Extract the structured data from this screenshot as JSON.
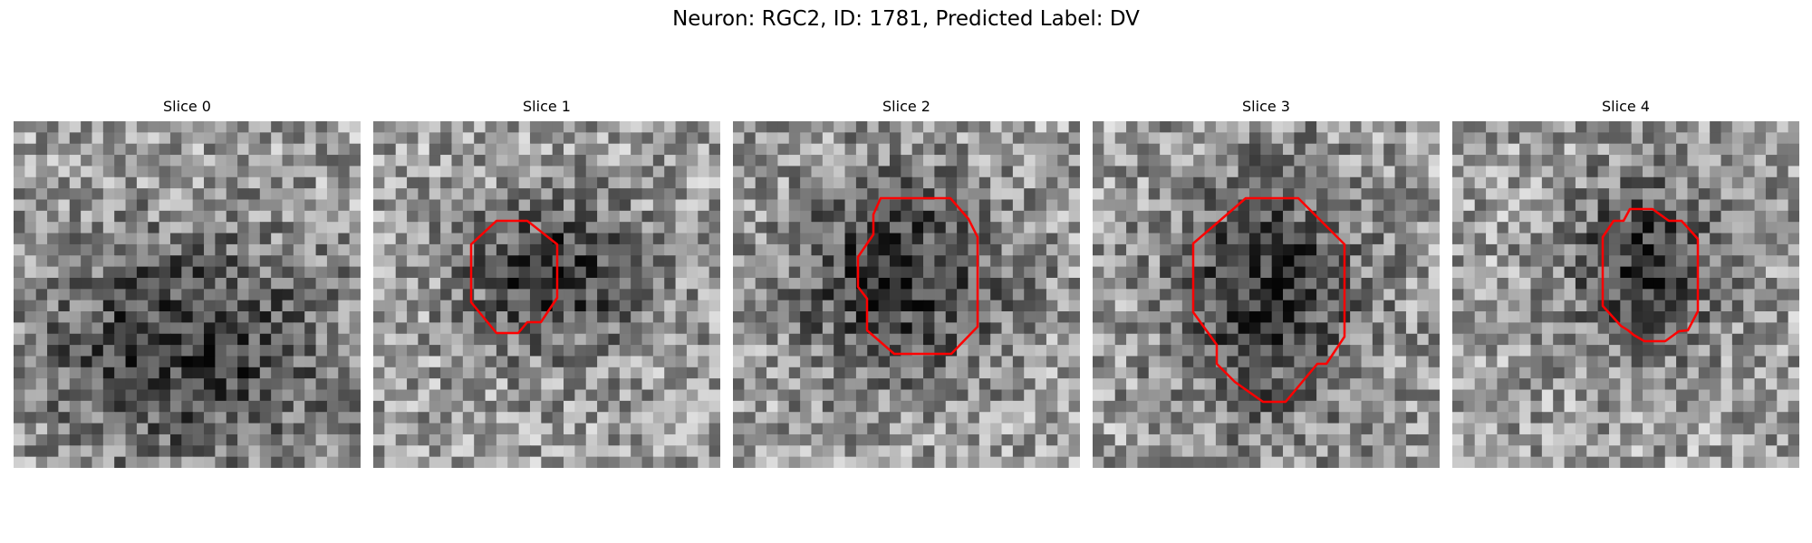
{
  "figure": {
    "title": "Neuron: RGC2, ID: 1781, Predicted Label: DV",
    "contour_color": "#ff0000",
    "colormap": "gray",
    "panels": [
      {
        "title": "Slice 0",
        "has_contour": false,
        "dark_blob": [
          0.5,
          0.65,
          0.3,
          0.22
        ],
        "seed": 11
      },
      {
        "title": "Slice 1",
        "has_contour": true,
        "dark_blob": [
          0.52,
          0.45,
          0.18,
          0.15
        ],
        "seed": 23
      },
      {
        "title": "Slice 2",
        "has_contour": true,
        "dark_blob": [
          0.48,
          0.45,
          0.22,
          0.2
        ],
        "seed": 37
      },
      {
        "title": "Slice 3",
        "has_contour": true,
        "dark_blob": [
          0.5,
          0.5,
          0.2,
          0.25
        ],
        "seed": 41
      },
      {
        "title": "Slice 4",
        "has_contour": true,
        "dark_blob": [
          0.55,
          0.42,
          0.15,
          0.18
        ],
        "seed": 53
      }
    ]
  }
}
